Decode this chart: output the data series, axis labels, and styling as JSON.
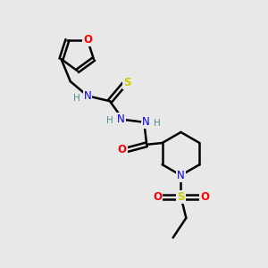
{
  "background_color": "#e8e8e8",
  "atom_colors": {
    "C": "#000000",
    "H": "#4a9090",
    "N": "#0000ee",
    "O": "#ff0000",
    "S": "#cccc00"
  },
  "bond_color": "#000000",
  "bond_width": 1.8,
  "figsize": [
    3.0,
    3.0
  ],
  "dpi": 100,
  "xlim": [
    0,
    10
  ],
  "ylim": [
    0,
    10
  ]
}
